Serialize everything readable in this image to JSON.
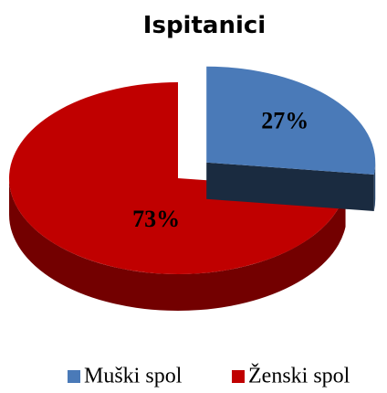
{
  "chart_data": {
    "type": "pie",
    "title": "Ispitanici",
    "categories": [
      "Muški spol",
      "Ženski spol"
    ],
    "values": [
      27,
      73
    ],
    "value_labels": [
      "27%",
      "73%"
    ],
    "colors": [
      "#4a7ab8",
      "#c00000"
    ],
    "legend": "bottom"
  }
}
